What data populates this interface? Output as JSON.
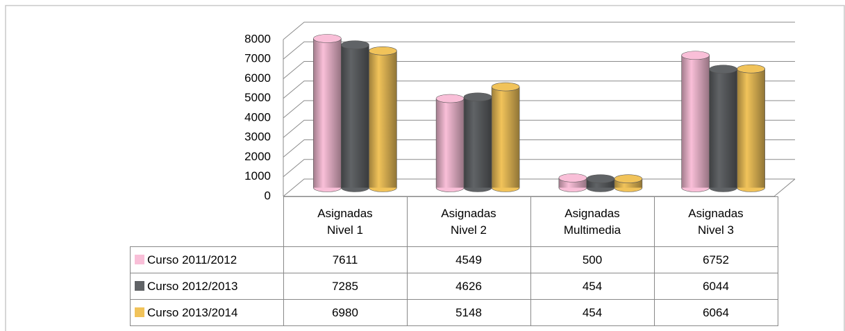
{
  "chart_data": {
    "type": "bar3d",
    "categories": [
      "Asignadas Nivel 1",
      "Asignadas Nivel 2",
      "Asignadas Multimedia",
      "Asignadas Nivel 3"
    ],
    "series": [
      {
        "name": "Curso 2011/2012",
        "color": "#f9bfd8",
        "values": [
          7611,
          4549,
          500,
          6752
        ]
      },
      {
        "name": "Curso 2012/2013",
        "color": "#606366",
        "values": [
          7285,
          4626,
          454,
          6044
        ]
      },
      {
        "name": "Curso 2013/2014",
        "color": "#f1c35a",
        "values": [
          6980,
          5148,
          454,
          6064
        ]
      }
    ],
    "ylim": [
      0,
      8000
    ],
    "yticks": [
      0,
      1000,
      2000,
      3000,
      4000,
      5000,
      6000,
      7000,
      8000
    ],
    "grid": true,
    "legend": "table"
  }
}
